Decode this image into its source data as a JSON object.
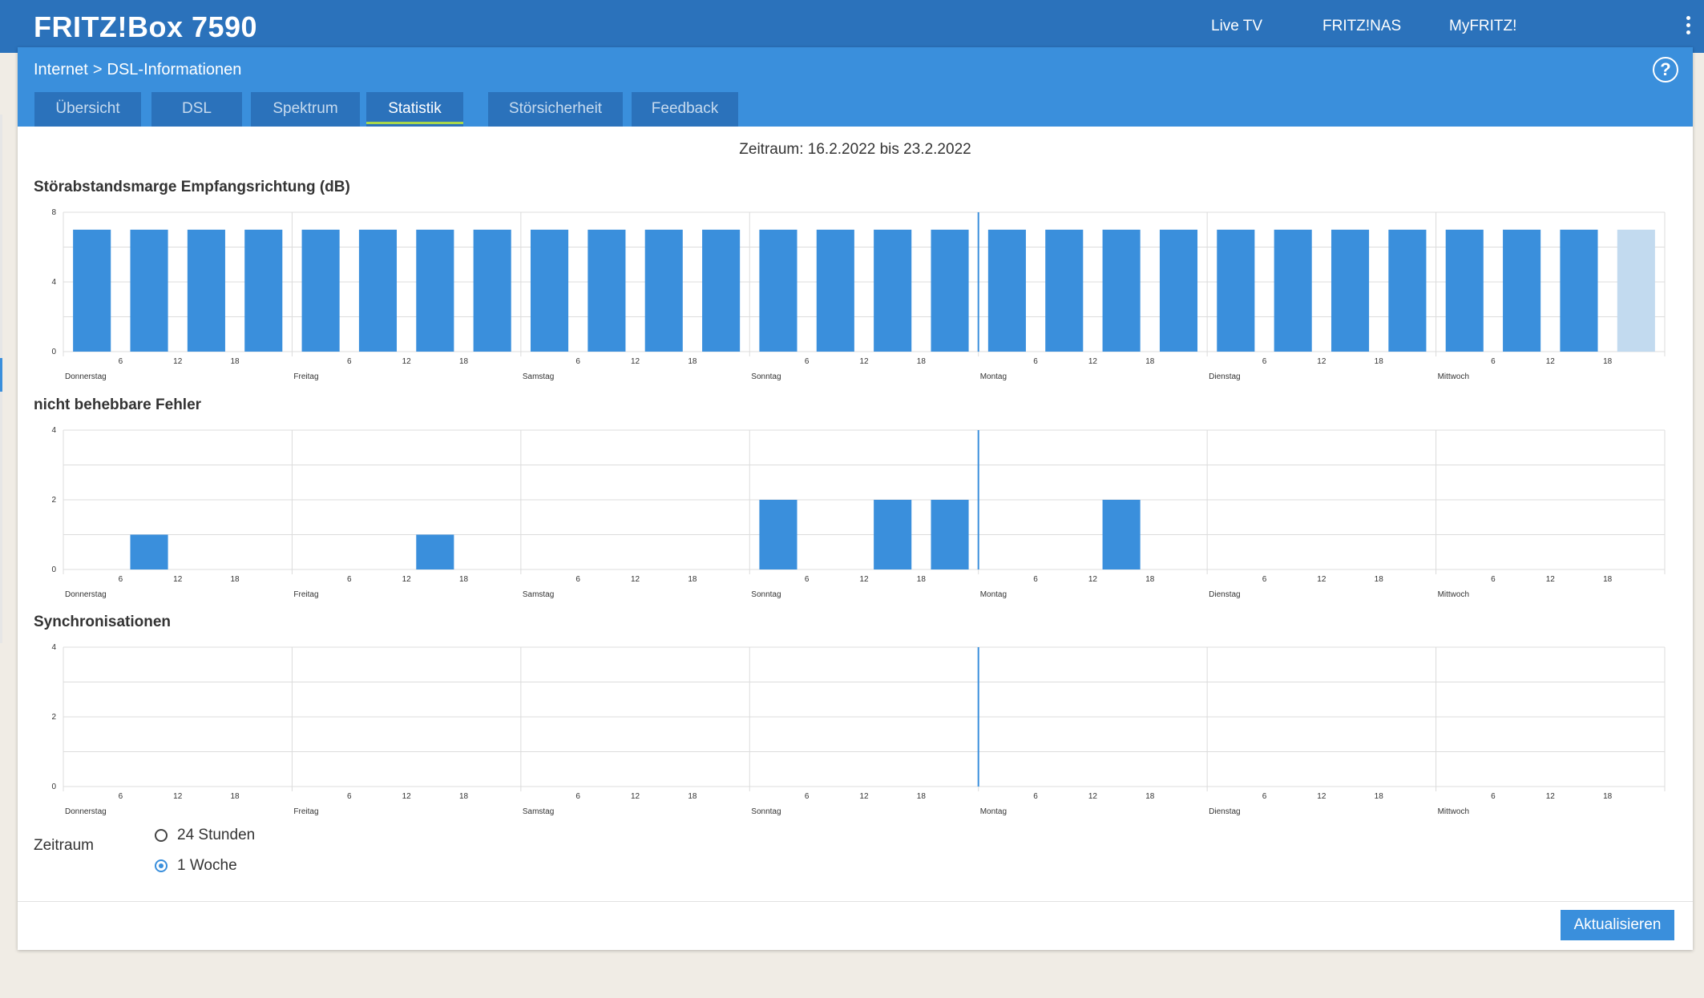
{
  "app": {
    "brand": "FRITZ!Box 7590",
    "nav": [
      "Live TV",
      "FRITZ!NAS",
      "MyFRITZ!"
    ]
  },
  "breadcrumb": {
    "section": "Internet",
    "separator": ">",
    "page": "DSL-Informationen"
  },
  "tabs": [
    {
      "label": "Übersicht",
      "active": false
    },
    {
      "label": "DSL",
      "active": false
    },
    {
      "label": "Spektrum",
      "active": false
    },
    {
      "label": "Statistik",
      "active": true
    },
    {
      "label": "Störsicherheit",
      "active": false
    },
    {
      "label": "Feedback",
      "active": false
    }
  ],
  "period_text": "Zeitraum: 16.2.2022 bis 23.2.2022",
  "colors": {
    "header": "#2b72bb",
    "accent": "#3a8fdc",
    "tab_indicator": "#a8d64b",
    "bar_current": "#c2daef"
  },
  "chart_data": [
    {
      "type": "bar",
      "title": "Störabstandsmarge Empfangsrichtung (dB)",
      "ylim": [
        0,
        8
      ],
      "yticks": [
        0,
        4,
        8
      ],
      "day_labels": [
        "Donnerstag",
        "Freitag",
        "Samstag",
        "Sonntag",
        "Montag",
        "Dienstag",
        "Mittwoch"
      ],
      "hour_ticks": [
        "6",
        "12",
        "18"
      ],
      "bins_per_day": 4,
      "values": [
        7,
        7,
        7,
        7,
        7,
        7,
        7,
        7,
        7,
        7,
        7,
        7,
        7,
        7,
        7,
        7,
        7,
        7,
        7,
        7,
        7,
        7,
        7,
        7,
        7,
        7,
        7,
        7
      ],
      "highlighted_bin": 27,
      "grid": true
    },
    {
      "type": "bar",
      "title": "nicht behebbare Fehler",
      "ylim": [
        0,
        4
      ],
      "yticks": [
        0,
        2,
        4
      ],
      "day_labels": [
        "Donnerstag",
        "Freitag",
        "Samstag",
        "Sonntag",
        "Montag",
        "Dienstag",
        "Mittwoch"
      ],
      "hour_ticks": [
        "6",
        "12",
        "18"
      ],
      "bins_per_day": 4,
      "values": [
        0,
        1,
        0,
        0,
        0,
        0,
        1,
        0,
        0,
        0,
        0,
        0,
        2,
        0,
        2,
        2,
        0,
        0,
        2,
        0,
        0,
        0,
        0,
        0,
        0,
        0,
        0,
        0
      ],
      "grid": true
    },
    {
      "type": "bar",
      "title": "Synchronisationen",
      "ylim": [
        0,
        4
      ],
      "yticks": [
        0,
        2,
        4
      ],
      "day_labels": [
        "Donnerstag",
        "Freitag",
        "Samstag",
        "Sonntag",
        "Montag",
        "Dienstag",
        "Mittwoch"
      ],
      "hour_ticks": [
        "6",
        "12",
        "18"
      ],
      "bins_per_day": 4,
      "values": [
        0,
        0,
        0,
        0,
        0,
        0,
        0,
        0,
        0,
        0,
        0,
        0,
        0,
        0,
        0,
        0,
        0,
        0,
        0,
        0,
        0,
        0,
        0,
        0,
        0,
        0,
        0,
        0
      ],
      "grid": true
    }
  ],
  "zeitraum": {
    "label": "Zeitraum",
    "options": [
      {
        "label": "24 Stunden",
        "checked": false
      },
      {
        "label": "1 Woche",
        "checked": true
      }
    ]
  },
  "button_refresh": "Aktualisieren"
}
